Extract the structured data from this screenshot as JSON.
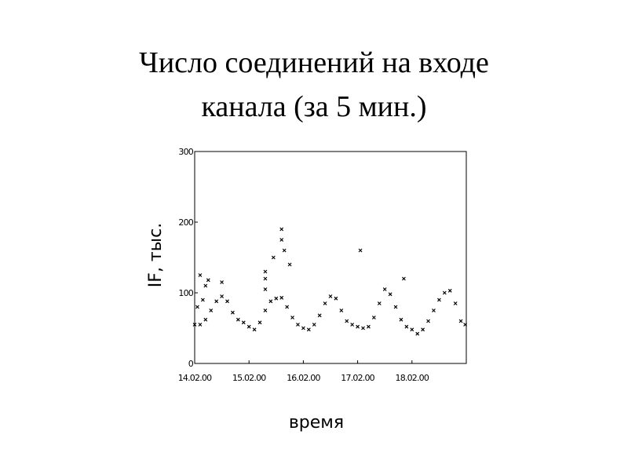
{
  "chart_data": {
    "type": "scatter",
    "title": [
      "Число соединений на входе",
      "канала (за 5 мин.)"
    ],
    "x_label": "время",
    "y_label": "IF, тыс.",
    "marker": "x",
    "color": "#000000",
    "x": [
      14.0,
      14.1,
      14.2,
      14.3,
      14.4,
      14.5,
      14.6,
      14.7,
      14.8,
      14.9,
      15.0,
      15.1,
      15.2,
      15.3,
      15.4,
      15.5,
      15.6,
      15.7,
      15.8,
      15.9,
      16.0,
      16.1,
      16.2,
      16.3,
      16.4,
      16.5,
      16.6,
      16.7,
      16.8,
      16.9,
      17.0,
      17.1,
      17.2,
      17.3,
      17.4,
      17.5,
      17.6,
      17.7,
      17.8,
      17.9,
      18.0,
      18.1,
      18.2,
      18.3,
      18.4,
      18.5,
      18.6,
      18.7,
      18.8,
      18.9,
      18.98,
      14.1,
      14.2,
      14.25,
      14.5,
      15.3,
      15.3,
      15.45,
      15.6,
      15.6,
      15.65,
      15.75,
      15.3,
      17.05,
      17.85,
      14.05,
      14.15
    ],
    "values": [
      55,
      55,
      62,
      75,
      88,
      95,
      88,
      72,
      62,
      58,
      52,
      48,
      58,
      75,
      88,
      92,
      93,
      80,
      65,
      55,
      50,
      48,
      55,
      68,
      85,
      95,
      92,
      75,
      60,
      55,
      52,
      50,
      52,
      65,
      85,
      105,
      98,
      80,
      62,
      52,
      48,
      42,
      48,
      60,
      75,
      90,
      100,
      103,
      85,
      60,
      55,
      125,
      110,
      118,
      115,
      120,
      130,
      150,
      190,
      175,
      160,
      140,
      105,
      160,
      120,
      80,
      90
    ],
    "xlim": [
      14,
      19
    ],
    "xticks": [
      {
        "value": 14,
        "label": "14.02.00"
      },
      {
        "value": 15,
        "label": "15.02.00"
      },
      {
        "value": 16,
        "label": "16.02.00"
      },
      {
        "value": 17,
        "label": "17.02.00"
      },
      {
        "value": 18,
        "label": "18.02.00"
      }
    ],
    "ylim": [
      0,
      300
    ],
    "yticks": [
      0,
      100,
      200,
      300
    ]
  }
}
